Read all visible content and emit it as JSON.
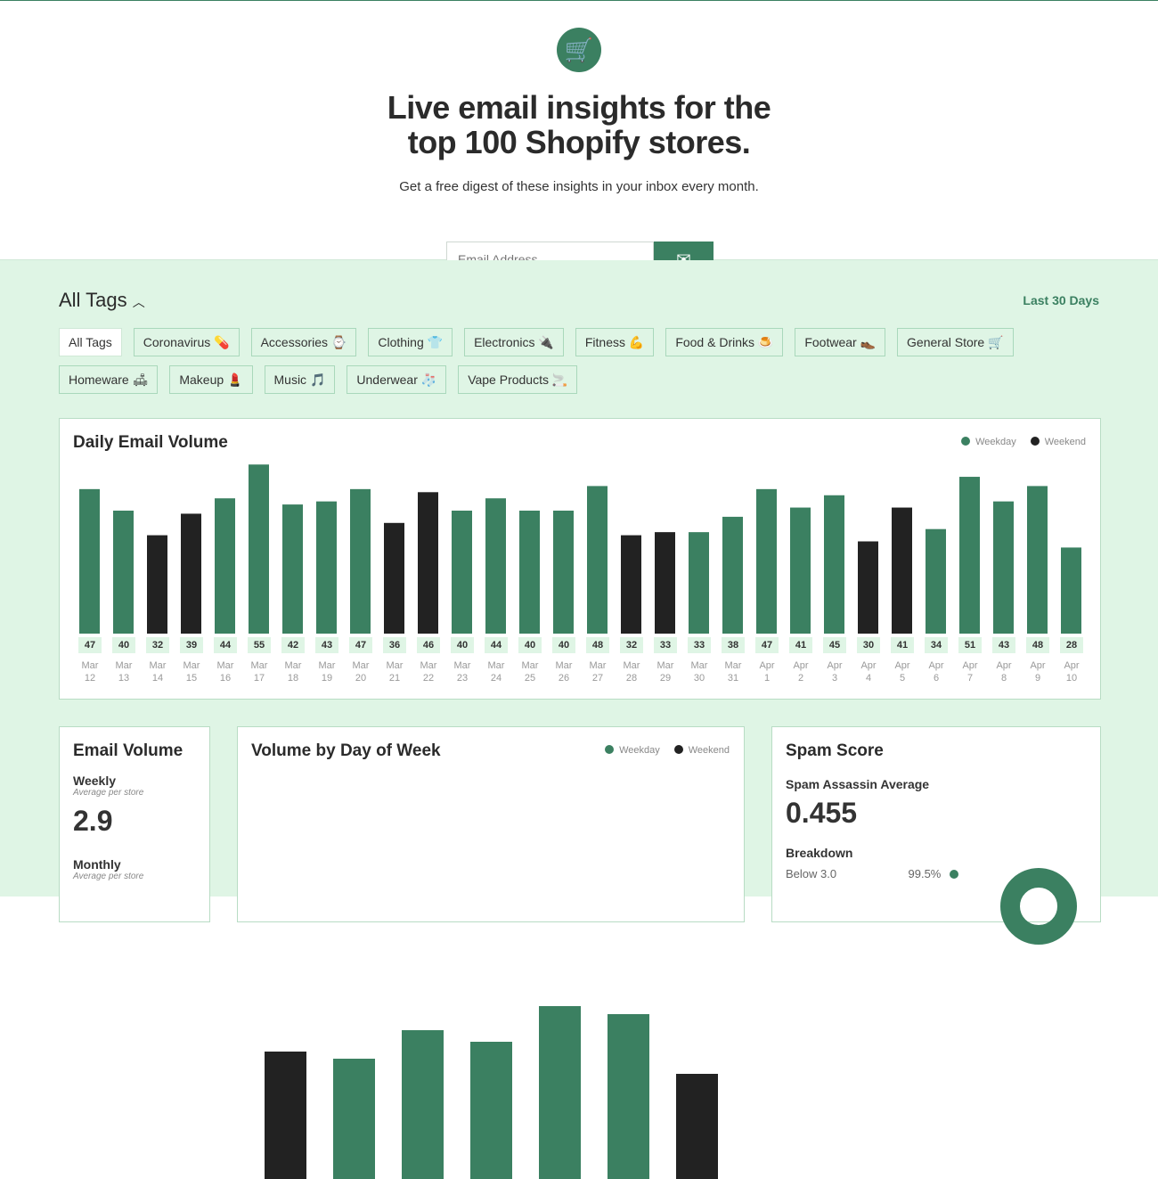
{
  "hero": {
    "title_line1": "Live email insights for the",
    "title_line2": "top 100 Shopify stores.",
    "subtitle": "Get a free digest of these insights in your inbox every month.",
    "email_placeholder": "Email Address"
  },
  "tags": {
    "title": "All Tags",
    "range": "Last 30 Days",
    "items": [
      "All Tags",
      "Coronavirus 💊",
      "Accessories ⌚",
      "Clothing 👕",
      "Electronics 🔌",
      "Fitness 💪",
      "Food & Drinks 🍮",
      "Footwear 👞",
      "General Store 🛒",
      "Homeware 🛋",
      "Makeup 💄",
      "Music 🎵",
      "Underwear 🧦",
      "Vape Products 🚬"
    ]
  },
  "colors": {
    "weekday": "#3b8061",
    "weekend": "#222222",
    "bg": "#dff5e5"
  },
  "legend": {
    "weekday": "Weekday",
    "weekend": "Weekend"
  },
  "chart_data": [
    {
      "type": "bar",
      "title": "Daily Email Volume",
      "categories": [
        "Mar 12",
        "Mar 13",
        "Mar 14",
        "Mar 15",
        "Mar 16",
        "Mar 17",
        "Mar 18",
        "Mar 19",
        "Mar 20",
        "Mar 21",
        "Mar 22",
        "Mar 23",
        "Mar 24",
        "Mar 25",
        "Mar 26",
        "Mar 27",
        "Mar 28",
        "Mar 29",
        "Mar 30",
        "Mar 31",
        "Apr 1",
        "Apr 2",
        "Apr 3",
        "Apr 4",
        "Apr 5",
        "Apr 6",
        "Apr 7",
        "Apr 8",
        "Apr 9",
        "Apr 10"
      ],
      "values": [
        47,
        40,
        32,
        39,
        44,
        55,
        42,
        43,
        47,
        36,
        46,
        40,
        44,
        40,
        40,
        48,
        32,
        33,
        33,
        38,
        47,
        41,
        45,
        30,
        41,
        34,
        51,
        43,
        48,
        28
      ],
      "weekend": [
        0,
        0,
        1,
        1,
        0,
        0,
        0,
        0,
        0,
        1,
        1,
        0,
        0,
        0,
        0,
        0,
        1,
        1,
        0,
        0,
        0,
        0,
        0,
        1,
        1,
        0,
        0,
        0,
        0,
        0
      ]
    },
    {
      "type": "bar",
      "title": "Volume by Day of Week",
      "values": [
        143,
        135,
        167,
        154,
        194,
        185,
        118
      ],
      "weekend": [
        1,
        0,
        0,
        0,
        0,
        0,
        1
      ]
    }
  ],
  "email_volume": {
    "title": "Email Volume",
    "weekly_label": "Weekly",
    "weekly_sub": "Average per store",
    "weekly_value": "2.9",
    "monthly_label": "Monthly",
    "monthly_sub": "Average per store"
  },
  "spam": {
    "title": "Spam Score",
    "avg_label": "Spam Assassin Average",
    "avg_value": "0.455",
    "breakdown_label": "Breakdown",
    "rows": [
      {
        "label": "Below 3.0",
        "pct": "99.5%"
      }
    ]
  }
}
